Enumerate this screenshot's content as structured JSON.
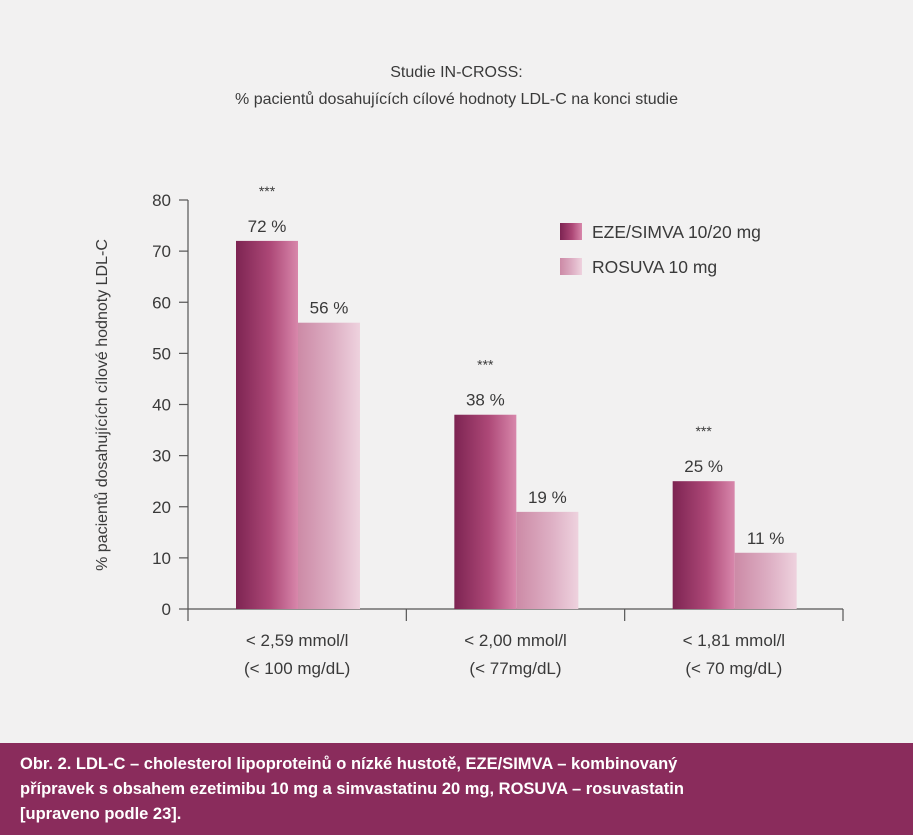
{
  "chart_data": {
    "type": "bar",
    "title": "Studie IN-CROSS:",
    "subtitle": "% pacientů dosahujících cílové hodnoty  LDL-C na konci studie",
    "ylabel": "% pacientů dosahujících cílové hodnoty LDL-C",
    "ylim": [
      0,
      80
    ],
    "yticks": [
      "0",
      "10",
      "20",
      "30",
      "40",
      "50",
      "60",
      "70",
      "80"
    ],
    "categories": [
      [
        "< 2,59 mmol/l",
        "(< 100 mg/dL)"
      ],
      [
        "< 2,00 mmol/l",
        "(< 77mg/dL)"
      ],
      [
        "< 1,81 mmol/l",
        "(< 70 mg/dL)"
      ]
    ],
    "series": [
      {
        "name": "EZE/SIMVA 10/20 mg",
        "values": [
          72,
          38,
          25
        ],
        "labels": [
          "72 %",
          "38 %",
          "25 %"
        ],
        "color": "#9b3566"
      },
      {
        "name": "ROSUVA 10 mg",
        "values": [
          56,
          19,
          11
        ],
        "labels": [
          "56 %",
          "19 %",
          "11 %"
        ],
        "color": "#dba4bd"
      }
    ],
    "significance": [
      "***",
      "***",
      "***"
    ],
    "legend_position": "top-right",
    "grid": false
  },
  "caption": {
    "lines": [
      "Obr. 2. LDL-C – cholesterol lipoproteinů o nízké hustotě, EZE/SIMVA – kombinovaný",
      "přípravek s obsahem ezetimibu 10 mg a simvastatinu 20 mg, ROSUVA – rosuvastatin",
      "[upraveno podle 23]."
    ]
  }
}
